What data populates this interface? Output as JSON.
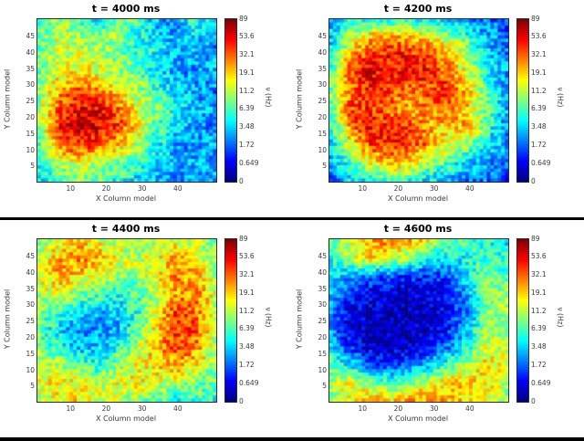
{
  "figure": {
    "background": "#ffffff",
    "divider_color": "#000000",
    "colormap": "jet",
    "tick_color": "#3a3a3a"
  },
  "chart_data": [
    {
      "type": "heatmap",
      "title": "t = 4000 ms",
      "xlabel": "X Column model",
      "ylabel": "Y Column model",
      "x_range": [
        1,
        50
      ],
      "y_range": [
        1,
        50
      ],
      "x_ticks": [
        10,
        20,
        30,
        40
      ],
      "y_ticks": [
        5,
        10,
        15,
        20,
        25,
        30,
        35,
        40,
        45
      ],
      "colorbar": {
        "label": "ν (Hz)",
        "scale": "log",
        "ticks": [
          "89",
          "53.6",
          "32.1",
          "19.1",
          "11.2",
          "6.39",
          "3.48",
          "1.72",
          "0.649",
          "0"
        ]
      },
      "grid_size": [
        50,
        50
      ],
      "speckle": 0.22,
      "seed": 11,
      "field_note": "coarse 10x10 normalized intensity, rows top-to-bottom; hot blob lower-left-center, cool right edge",
      "field": [
        [
          0.4,
          0.55,
          0.45,
          0.35,
          0.5,
          0.45,
          0.3,
          0.25,
          0.45,
          0.3
        ],
        [
          0.45,
          0.6,
          0.55,
          0.5,
          0.55,
          0.4,
          0.35,
          0.3,
          0.35,
          0.25
        ],
        [
          0.5,
          0.55,
          0.6,
          0.55,
          0.5,
          0.45,
          0.4,
          0.3,
          0.3,
          0.3
        ],
        [
          0.45,
          0.6,
          0.65,
          0.6,
          0.55,
          0.5,
          0.35,
          0.3,
          0.25,
          0.3
        ],
        [
          0.5,
          0.7,
          0.8,
          0.75,
          0.65,
          0.55,
          0.45,
          0.35,
          0.3,
          0.25
        ],
        [
          0.55,
          0.8,
          0.9,
          0.88,
          0.8,
          0.6,
          0.5,
          0.4,
          0.3,
          0.3
        ],
        [
          0.5,
          0.85,
          0.92,
          0.9,
          0.82,
          0.65,
          0.45,
          0.35,
          0.3,
          0.25
        ],
        [
          0.45,
          0.75,
          0.85,
          0.8,
          0.7,
          0.55,
          0.4,
          0.3,
          0.25,
          0.3
        ],
        [
          0.4,
          0.55,
          0.6,
          0.55,
          0.5,
          0.45,
          0.35,
          0.3,
          0.3,
          0.25
        ],
        [
          0.35,
          0.45,
          0.5,
          0.45,
          0.4,
          0.35,
          0.3,
          0.25,
          0.3,
          0.3
        ]
      ]
    },
    {
      "type": "heatmap",
      "title": "t = 4200 ms",
      "xlabel": "X Column model",
      "ylabel": "Y Column model",
      "x_range": [
        1,
        50
      ],
      "y_range": [
        1,
        50
      ],
      "x_ticks": [
        10,
        20,
        30,
        40
      ],
      "y_ticks": [
        5,
        10,
        15,
        20,
        25,
        30,
        35,
        40,
        45
      ],
      "colorbar": {
        "label": "ν (Hz)",
        "scale": "log",
        "ticks": [
          "89",
          "53.6",
          "32.1",
          "19.1",
          "11.2",
          "6.39",
          "3.48",
          "1.72",
          "0.649",
          "0"
        ]
      },
      "grid_size": [
        50,
        50
      ],
      "speckle": 0.22,
      "seed": 22,
      "field_note": "large hot mass covering center, cool corners and right edge",
      "field": [
        [
          0.3,
          0.4,
          0.45,
          0.4,
          0.45,
          0.4,
          0.35,
          0.3,
          0.25,
          0.2
        ],
        [
          0.35,
          0.55,
          0.7,
          0.75,
          0.7,
          0.65,
          0.55,
          0.45,
          0.3,
          0.25
        ],
        [
          0.4,
          0.7,
          0.85,
          0.88,
          0.85,
          0.8,
          0.7,
          0.55,
          0.35,
          0.25
        ],
        [
          0.45,
          0.8,
          0.9,
          0.85,
          0.88,
          0.85,
          0.75,
          0.6,
          0.4,
          0.3
        ],
        [
          0.5,
          0.75,
          0.88,
          0.8,
          0.75,
          0.8,
          0.85,
          0.7,
          0.45,
          0.25
        ],
        [
          0.45,
          0.8,
          0.85,
          0.75,
          0.7,
          0.75,
          0.8,
          0.65,
          0.5,
          0.3
        ],
        [
          0.4,
          0.75,
          0.88,
          0.85,
          0.8,
          0.7,
          0.65,
          0.7,
          0.45,
          0.25
        ],
        [
          0.35,
          0.6,
          0.8,
          0.85,
          0.82,
          0.75,
          0.6,
          0.5,
          0.35,
          0.3
        ],
        [
          0.3,
          0.45,
          0.6,
          0.7,
          0.65,
          0.55,
          0.45,
          0.35,
          0.3,
          0.25
        ],
        [
          0.25,
          0.35,
          0.4,
          0.45,
          0.4,
          0.35,
          0.3,
          0.25,
          0.25,
          0.2
        ]
      ]
    },
    {
      "type": "heatmap",
      "title": "t = 4400 ms",
      "xlabel": "X Column model",
      "ylabel": "Y Column model",
      "x_range": [
        1,
        50
      ],
      "y_range": [
        1,
        50
      ],
      "x_ticks": [
        10,
        20,
        30,
        40
      ],
      "y_ticks": [
        5,
        10,
        15,
        20,
        25,
        30,
        35,
        40,
        45
      ],
      "colorbar": {
        "label": "ν (Hz)",
        "scale": "log",
        "ticks": [
          "89",
          "53.6",
          "32.1",
          "19.1",
          "11.2",
          "6.39",
          "3.48",
          "1.72",
          "0.649",
          "0"
        ]
      },
      "grid_size": [
        50,
        50
      ],
      "speckle": 0.22,
      "seed": 33,
      "field_note": "warm outer ring, cool depression center-left, hot vertical band on right",
      "field": [
        [
          0.5,
          0.6,
          0.65,
          0.6,
          0.55,
          0.5,
          0.55,
          0.6,
          0.55,
          0.45
        ],
        [
          0.55,
          0.7,
          0.75,
          0.7,
          0.6,
          0.55,
          0.6,
          0.7,
          0.65,
          0.5
        ],
        [
          0.6,
          0.7,
          0.65,
          0.6,
          0.55,
          0.5,
          0.6,
          0.75,
          0.7,
          0.55
        ],
        [
          0.55,
          0.6,
          0.5,
          0.45,
          0.4,
          0.45,
          0.55,
          0.7,
          0.75,
          0.6
        ],
        [
          0.5,
          0.45,
          0.35,
          0.3,
          0.35,
          0.4,
          0.6,
          0.8,
          0.78,
          0.55
        ],
        [
          0.45,
          0.35,
          0.25,
          0.28,
          0.3,
          0.45,
          0.65,
          0.85,
          0.8,
          0.6
        ],
        [
          0.5,
          0.4,
          0.3,
          0.32,
          0.4,
          0.55,
          0.7,
          0.8,
          0.75,
          0.55
        ],
        [
          0.55,
          0.55,
          0.45,
          0.4,
          0.5,
          0.6,
          0.65,
          0.7,
          0.65,
          0.5
        ],
        [
          0.6,
          0.65,
          0.6,
          0.55,
          0.6,
          0.65,
          0.6,
          0.55,
          0.5,
          0.45
        ],
        [
          0.55,
          0.6,
          0.65,
          0.6,
          0.55,
          0.5,
          0.45,
          0.4,
          0.45,
          0.4
        ]
      ]
    },
    {
      "type": "heatmap",
      "title": "t = 4600 ms",
      "xlabel": "X Column model",
      "ylabel": "Y Column model",
      "x_range": [
        1,
        50
      ],
      "y_range": [
        1,
        50
      ],
      "x_ticks": [
        10,
        20,
        30,
        40
      ],
      "y_ticks": [
        5,
        10,
        15,
        20,
        25,
        30,
        35,
        40,
        45
      ],
      "colorbar": {
        "label": "ν (Hz)",
        "scale": "log",
        "ticks": [
          "89",
          "53.6",
          "32.1",
          "19.1",
          "11.2",
          "6.39",
          "3.48",
          "1.72",
          "0.649",
          "0"
        ]
      },
      "grid_size": [
        50,
        50
      ],
      "speckle": 0.2,
      "seed": 44,
      "field_note": "large dark-blue quiescent blob center-left, warm band along top and bottom edges",
      "field": [
        [
          0.45,
          0.6,
          0.7,
          0.75,
          0.7,
          0.6,
          0.5,
          0.45,
          0.4,
          0.35
        ],
        [
          0.4,
          0.55,
          0.65,
          0.6,
          0.5,
          0.4,
          0.35,
          0.4,
          0.45,
          0.4
        ],
        [
          0.35,
          0.3,
          0.25,
          0.2,
          0.18,
          0.15,
          0.2,
          0.35,
          0.5,
          0.45
        ],
        [
          0.3,
          0.15,
          0.1,
          0.08,
          0.06,
          0.08,
          0.15,
          0.3,
          0.55,
          0.5
        ],
        [
          0.25,
          0.1,
          0.06,
          0.05,
          0.05,
          0.06,
          0.12,
          0.25,
          0.5,
          0.55
        ],
        [
          0.3,
          0.08,
          0.05,
          0.04,
          0.05,
          0.08,
          0.15,
          0.3,
          0.55,
          0.5
        ],
        [
          0.35,
          0.15,
          0.08,
          0.06,
          0.08,
          0.12,
          0.25,
          0.4,
          0.6,
          0.55
        ],
        [
          0.45,
          0.35,
          0.2,
          0.15,
          0.2,
          0.3,
          0.45,
          0.55,
          0.65,
          0.6
        ],
        [
          0.55,
          0.6,
          0.5,
          0.45,
          0.5,
          0.6,
          0.65,
          0.7,
          0.65,
          0.55
        ],
        [
          0.5,
          0.65,
          0.7,
          0.65,
          0.7,
          0.72,
          0.7,
          0.65,
          0.6,
          0.5
        ]
      ]
    }
  ]
}
